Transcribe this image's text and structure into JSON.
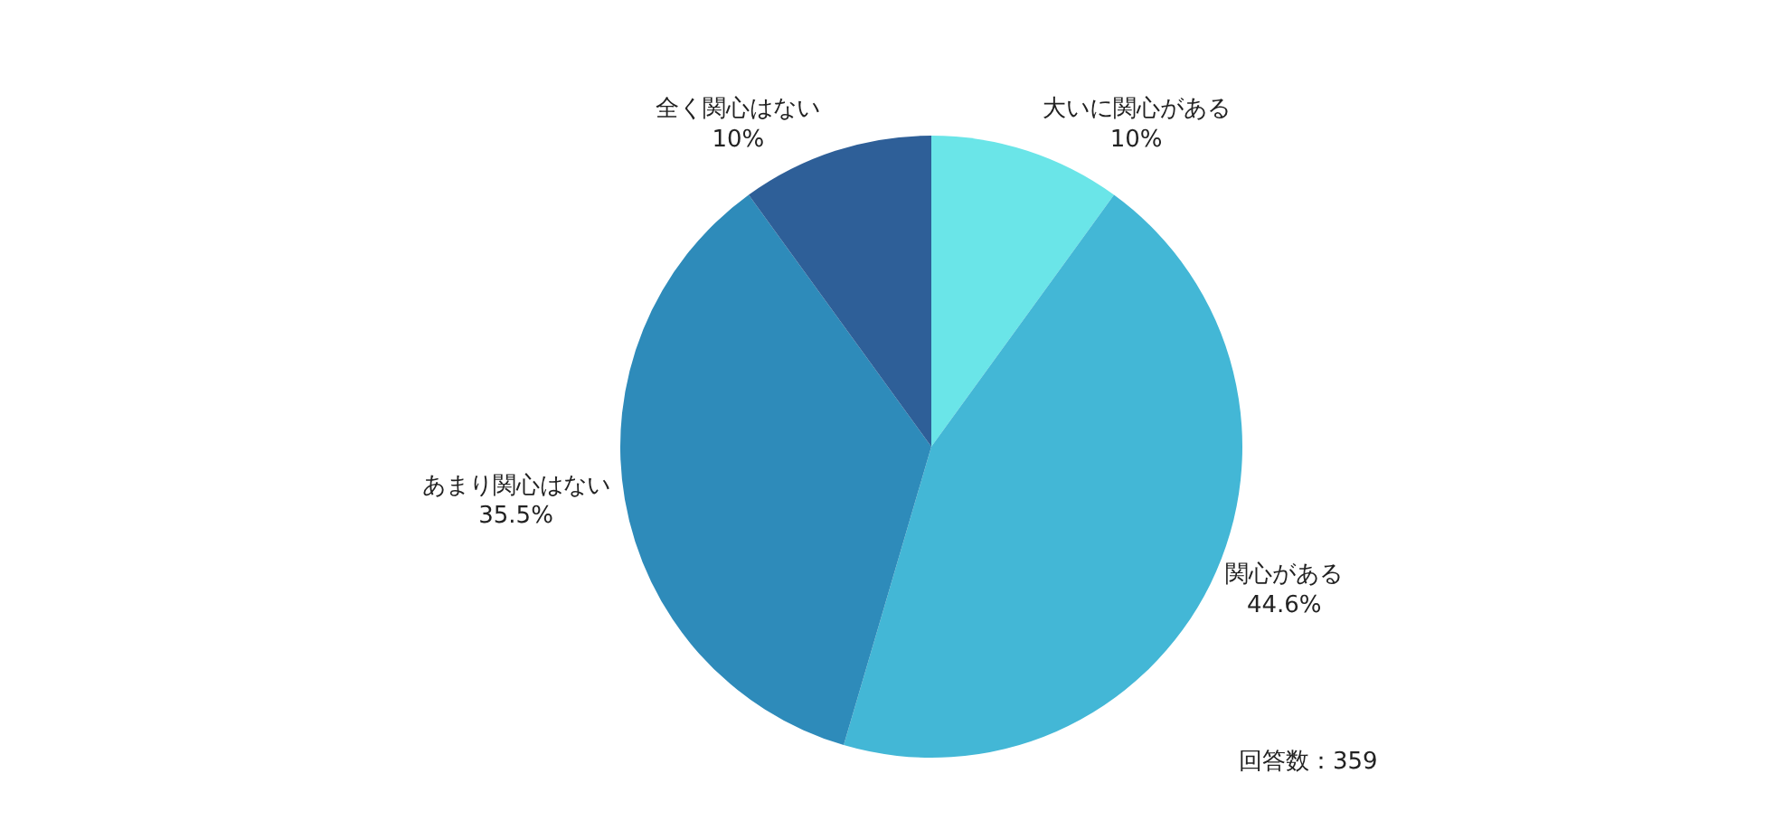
{
  "chart_data": {
    "type": "pie",
    "categories": [
      "大いに関心がある",
      "関心がある",
      "あまり関心はない",
      "全く関心はない"
    ],
    "values": [
      10,
      44.6,
      35.5,
      10
    ],
    "colors": [
      "#6ae5e8",
      "#43b7d6",
      "#2e8bba",
      "#2e5f98"
    ],
    "value_labels": [
      "10%",
      "44.6%",
      "35.5%",
      "10%"
    ],
    "annotations": [
      "回答数：359"
    ]
  }
}
